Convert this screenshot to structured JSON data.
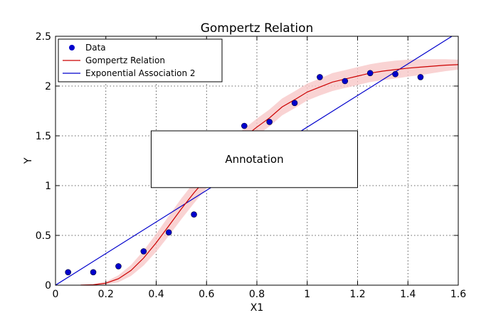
{
  "chart_data": {
    "type": "scatter",
    "title": "Gompertz Relation",
    "xlabel": "X1",
    "ylabel": "Y",
    "xlim": [
      0,
      1.6
    ],
    "ylim": [
      0,
      2.5
    ],
    "xticks": [
      0,
      0.2,
      0.4,
      0.6,
      0.8,
      1,
      1.2,
      1.4,
      1.6
    ],
    "yticks": [
      0,
      0.5,
      1,
      1.5,
      2,
      2.5
    ],
    "xtick_labels": [
      "0",
      "0.2",
      "0.4",
      "0.6",
      "0.8",
      "1",
      "1.2",
      "1.4",
      "1.6"
    ],
    "ytick_labels": [
      "0",
      "0.5",
      "1",
      "1.5",
      "2",
      "2.5"
    ],
    "grid": true,
    "legend_position": "top-left",
    "annotation": {
      "text": "Annotation",
      "x_range": [
        0.38,
        1.2
      ],
      "y_range": [
        0.98,
        1.55
      ]
    },
    "series": [
      {
        "name": "Data",
        "kind": "scatter",
        "color": "#0000cc",
        "x": [
          0.05,
          0.15,
          0.25,
          0.35,
          0.45,
          0.55,
          0.75,
          0.85,
          0.95,
          1.05,
          1.15,
          1.25,
          1.35,
          1.45
        ],
        "y": [
          0.13,
          0.13,
          0.19,
          0.34,
          0.53,
          0.71,
          1.6,
          1.64,
          1.83,
          2.09,
          2.05,
          2.13,
          2.12,
          2.09
        ]
      },
      {
        "name": "Gompertz Relation",
        "kind": "line",
        "color": "#cc0000",
        "band_color": "#f8c8c8",
        "x": [
          0.1,
          0.15,
          0.2,
          0.25,
          0.3,
          0.35,
          0.4,
          0.45,
          0.5,
          0.55,
          0.6,
          0.65,
          0.7,
          0.75,
          0.8,
          0.85,
          0.9,
          0.95,
          1.0,
          1.05,
          1.1,
          1.15,
          1.2,
          1.25,
          1.3,
          1.35,
          1.4,
          1.45,
          1.5,
          1.55,
          1.6
        ],
        "y": [
          0.001,
          0.004,
          0.02,
          0.064,
          0.148,
          0.272,
          0.426,
          0.596,
          0.767,
          0.928,
          1.074,
          1.202,
          1.383,
          1.487,
          1.588,
          1.68,
          1.79,
          1.863,
          1.94,
          1.99,
          2.04,
          2.07,
          2.1,
          2.13,
          2.15,
          2.165,
          2.18,
          2.19,
          2.2,
          2.21,
          2.215
        ],
        "band_halfwidth": [
          0.0,
          0.004,
          0.015,
          0.035,
          0.055,
          0.075,
          0.09,
          0.1,
          0.105,
          0.105,
          0.1,
          0.095,
          0.09,
          0.085,
          0.085,
          0.085,
          0.085,
          0.085,
          0.085,
          0.085,
          0.09,
          0.09,
          0.09,
          0.09,
          0.09,
          0.09,
          0.085,
          0.08,
          0.07,
          0.06,
          0.05
        ]
      },
      {
        "name": "Exponential Association 2",
        "kind": "line",
        "color": "#0000cc",
        "x": [
          0.0,
          1.6
        ],
        "y": [
          0.0,
          2.54
        ]
      }
    ]
  }
}
